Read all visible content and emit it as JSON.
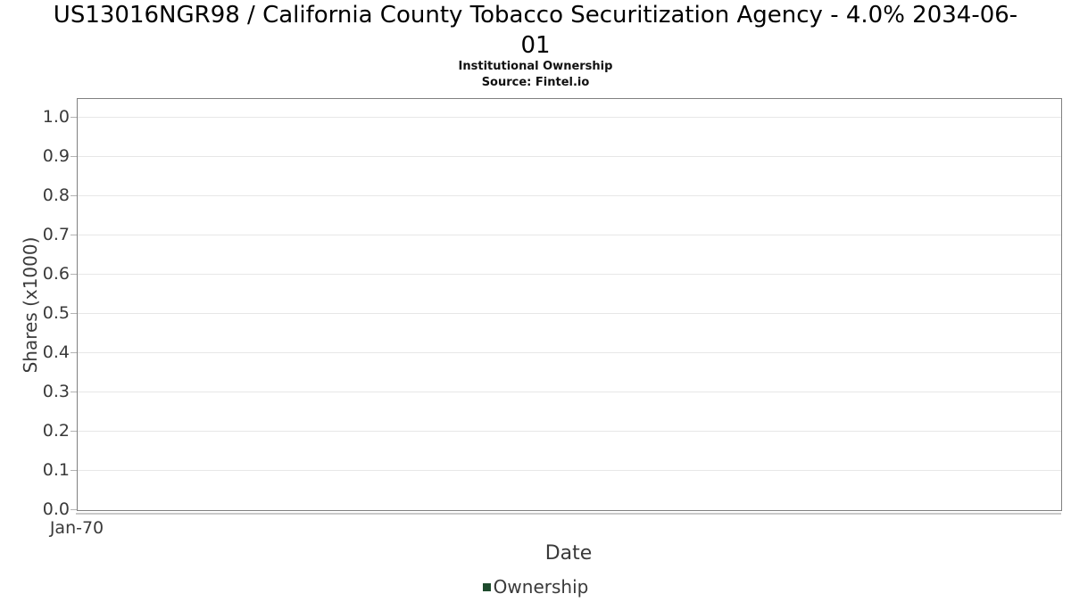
{
  "chart": {
    "title": "US13016NGR98 / California County Tobacco Securitization Agency - 4.0% 2034-06-01",
    "subtitle": "Institutional Ownership",
    "source": "Source: Fintel.io"
  },
  "chart_data": {
    "type": "line",
    "title": "US13016NGR98 / California County Tobacco Securitization Agency - 4.0% 2034-06-01",
    "subtitle": "Institutional Ownership",
    "source": "Source: Fintel.io",
    "xlabel": "Date",
    "ylabel": "Shares (x1000)",
    "x": [],
    "series": [
      {
        "name": "Ownership",
        "color": "#1e4b2d",
        "values": []
      }
    ],
    "x_ticks": [
      "Jan-70"
    ],
    "y_ticks": [
      "0.0",
      "0.1",
      "0.2",
      "0.3",
      "0.4",
      "0.5",
      "0.6",
      "0.7",
      "0.8",
      "0.9",
      "1.0"
    ],
    "ylim": [
      0.0,
      1.05
    ],
    "grid": "horizontal",
    "legend_position": "bottom",
    "note": "empty chart - no data points plotted"
  },
  "colors": {
    "plot_border": "#808080",
    "gridline": "#e7e7e7",
    "axis_line": "#c9c9c9",
    "tick_text": "#3a3a3a",
    "title_text": "#000000",
    "series_ownership": "#1e4b2d"
  }
}
